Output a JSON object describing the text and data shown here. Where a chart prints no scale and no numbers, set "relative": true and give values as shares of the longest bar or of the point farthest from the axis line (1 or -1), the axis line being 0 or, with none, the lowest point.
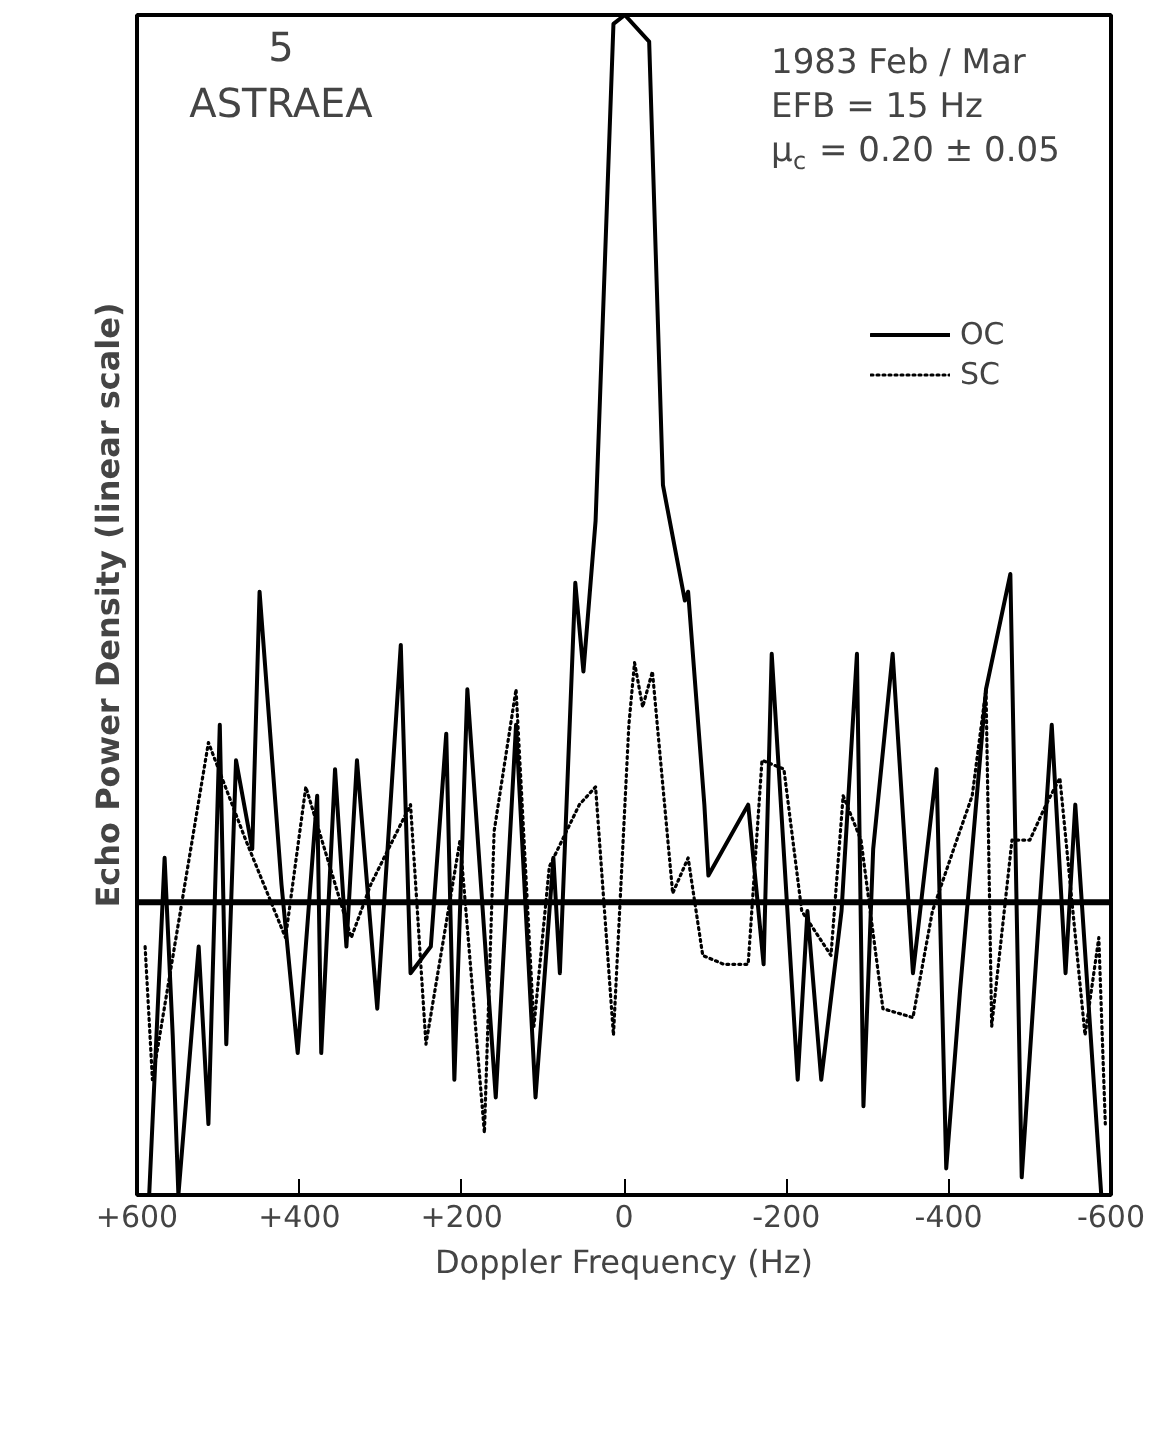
{
  "chart_data": {
    "type": "line",
    "relative": true,
    "xlabel": "Doppler Frequency (Hz)",
    "ylabel": "Echo Power Density (linear scale)",
    "annotations": [
      "5",
      "ASTRAEA",
      "1983 Feb / Mar",
      "EFB = 15 Hz",
      "μ$_{c}$ = 0.20 ± 0.05"
    ],
    "xlim": [
      600,
      -600
    ],
    "xticks": [
      {
        "value": 600,
        "label": "+600"
      },
      {
        "value": 400,
        "label": "+400"
      },
      {
        "value": 200,
        "label": "+200"
      },
      0,
      {
        "value": -200,
        "label": "-200"
      },
      {
        "value": -400,
        "label": "-400"
      },
      {
        "value": -600,
        "label": "-600"
      }
    ],
    "ref_lines": [
      {
        "axis": "y",
        "value": 0,
        "color": "#000000"
      }
    ],
    "legend": "top right",
    "grid": false,
    "series": [
      {
        "name": "OC",
        "color": "#000000",
        "line_style": "solid",
        "x": [
          585,
          566,
          556,
          549,
          524,
          512,
          498,
          490,
          478,
          458,
          449,
          422,
          402,
          378,
          373,
          356,
          342,
          329,
          304,
          275,
          263,
          238,
          219,
          209,
          193,
          158,
          133,
          109,
          87,
          79,
          60,
          50,
          35,
          13,
          -1,
          -31,
          -48,
          -75,
          -79,
          -99,
          -104,
          -153,
          -172,
          -182,
          -214,
          -226,
          -243,
          -268,
          -287,
          -295,
          -307,
          -331,
          -356,
          -385,
          -397,
          -414,
          -446,
          -476,
          -490,
          -527,
          -544,
          -556,
          -588
        ],
        "values": [
          -0.33,
          0.05,
          -0.15,
          -0.33,
          -0.05,
          -0.25,
          0.2,
          -0.16,
          0.16,
          0.06,
          0.35,
          0.02,
          -0.17,
          0.12,
          -0.17,
          0.15,
          -0.05,
          0.16,
          -0.12,
          0.29,
          -0.08,
          -0.05,
          0.19,
          -0.2,
          0.24,
          -0.22,
          0.2,
          -0.22,
          0.05,
          -0.08,
          0.36,
          0.26,
          0.43,
          0.99,
          1.0,
          0.97,
          0.47,
          0.34,
          0.35,
          0.11,
          0.03,
          0.11,
          -0.07,
          0.28,
          -0.2,
          -0.01,
          -0.2,
          -0.01,
          0.28,
          -0.23,
          0.06,
          0.28,
          -0.08,
          0.15,
          -0.3,
          -0.1,
          0.24,
          0.37,
          -0.31,
          0.2,
          -0.08,
          0.11,
          -0.33
        ]
      },
      {
        "name": "SC",
        "color": "#000000",
        "line_style": "dotted",
        "x": [
          590,
          581,
          512,
          466,
          417,
          392,
          336,
          312,
          263,
          244,
          202,
          172,
          160,
          133,
          111,
          92,
          55,
          35,
          13,
          -6,
          -13,
          -23,
          -35,
          -60,
          -79,
          -97,
          -123,
          -153,
          -170,
          -197,
          -219,
          -255,
          -270,
          -292,
          -319,
          -356,
          -380,
          -410,
          -429,
          -446,
          -453,
          -478,
          -500,
          -520,
          -537,
          -568,
          -585,
          -593
        ],
        "values": [
          -0.05,
          -0.2,
          0.18,
          0.07,
          -0.04,
          0.13,
          -0.04,
          0.02,
          0.11,
          -0.16,
          0.07,
          -0.26,
          0.08,
          0.24,
          -0.14,
          0.04,
          0.11,
          0.13,
          -0.15,
          0.2,
          0.27,
          0.22,
          0.26,
          0.01,
          0.05,
          -0.06,
          -0.07,
          -0.07,
          0.16,
          0.15,
          -0.01,
          -0.06,
          0.12,
          0.07,
          -0.12,
          -0.13,
          -0.01,
          0.07,
          0.12,
          0.24,
          -0.14,
          0.07,
          0.07,
          0.11,
          0.14,
          -0.15,
          -0.04,
          -0.25
        ]
      }
    ]
  }
}
